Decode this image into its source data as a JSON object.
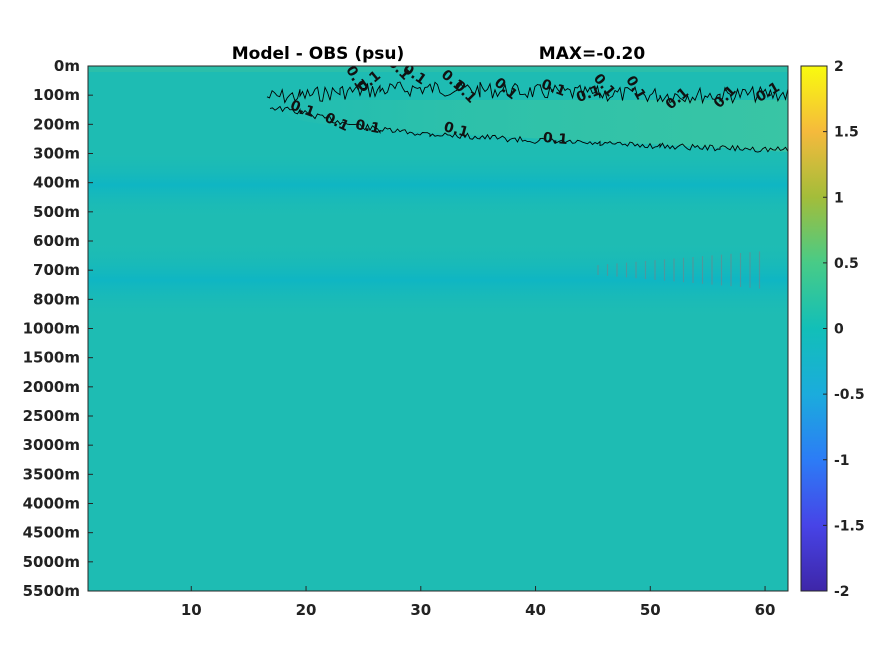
{
  "chart_data": {
    "type": "heatmap",
    "title": "Model - OBS (psu)",
    "subtitle": "MAX=-0.20",
    "xlabel": "",
    "ylabel": "",
    "xlim": [
      1,
      62
    ],
    "x_ticks": [
      10,
      20,
      30,
      40,
      50,
      60
    ],
    "y_ticks": [
      "0m",
      "100m",
      "200m",
      "300m",
      "400m",
      "500m",
      "600m",
      "700m",
      "800m",
      "1000m",
      "1500m",
      "2000m",
      "2500m",
      "3000m",
      "3500m",
      "4000m",
      "4500m",
      "5000m",
      "5500m"
    ],
    "colorbar": {
      "range": [
        -2,
        2
      ],
      "ticks": [
        "2",
        "1.5",
        "1",
        "0.5",
        "0",
        "-0.5",
        "-1",
        "-1.5",
        "-2"
      ],
      "colormap": [
        "#3e26a8",
        "#4744e7",
        "#2c7cf6",
        "#1bacdc",
        "#12bfb8",
        "#48cb87",
        "#a3bd3a",
        "#f5ba3c",
        "#f9fb0e"
      ]
    },
    "field_colors": {
      "background": "#1ebcb3",
      "upper_positive": "#38c5a4",
      "mid_band": "#10b6c4"
    },
    "contours": [
      {
        "level": "0.1",
        "label_count_upper": 13
      },
      {
        "level": "0.1",
        "label_count_lower": 6
      }
    ],
    "contour_labels": [
      "0.1",
      "0.1",
      "0.1",
      "0.1",
      "0.1",
      "0.1",
      "0.1",
      "0.1",
      "0.1",
      "0.1",
      "0.1",
      "0.1",
      "0.1",
      "0.1",
      "0.1",
      "0.1",
      "0.1",
      "0.1",
      "0.1"
    ]
  }
}
